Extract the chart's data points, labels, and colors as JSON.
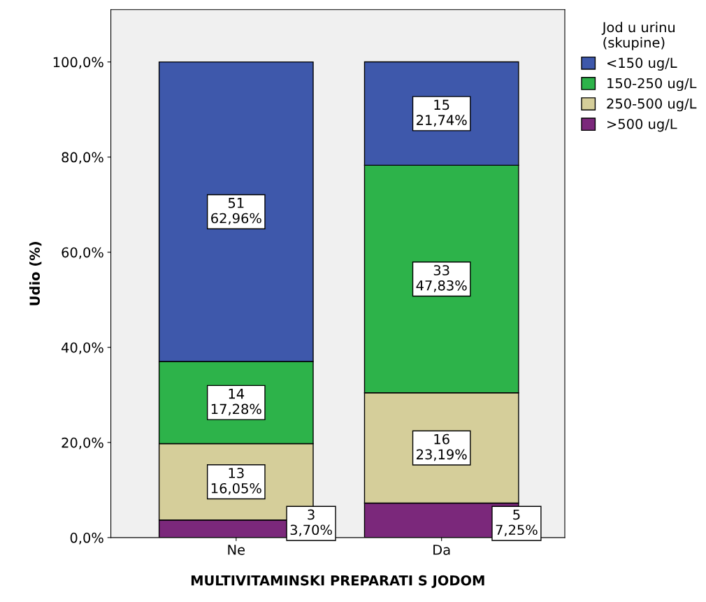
{
  "chart_data": {
    "type": "bar",
    "stacked": true,
    "xlabel": "MULTIVITAMINSKI PREPARATI S JODOM",
    "ylabel": "Udio (%)",
    "legend_title": "Jod u urinu\n(skupine)",
    "legend": "right",
    "grid": false,
    "categories": [
      "Ne",
      "Da"
    ],
    "ylim": [
      0,
      111
    ],
    "yticks": [
      {
        "value": 0,
        "label": "0,0%"
      },
      {
        "value": 20,
        "label": "20,0%"
      },
      {
        "value": 40,
        "label": "40,0%"
      },
      {
        "value": 60,
        "label": "60,0%"
      },
      {
        "value": 80,
        "label": "80,0%"
      },
      {
        "value": 100,
        "label": "100,0%"
      }
    ],
    "series": [
      {
        "name": ">500 ug/L",
        "color": "#7b287b",
        "values": [
          3.7,
          7.25
        ],
        "value_labels": [
          "3\n3,70%",
          "5\n7,25%"
        ]
      },
      {
        "name": "250-500 ug/L",
        "color": "#d5ce9a",
        "values": [
          16.05,
          23.19
        ],
        "value_labels": [
          "13\n16,05%",
          "16\n23,19%"
        ]
      },
      {
        "name": "150-250 ug/L",
        "color": "#2db34a",
        "values": [
          17.28,
          47.83
        ],
        "value_labels": [
          "14\n17,28%",
          "33\n47,83%"
        ]
      },
      {
        "name": "<150 ug/L",
        "color": "#3e58ab",
        "values": [
          62.96,
          21.74
        ],
        "value_labels": [
          "51\n62,96%",
          "15\n21,74%"
        ]
      }
    ]
  }
}
